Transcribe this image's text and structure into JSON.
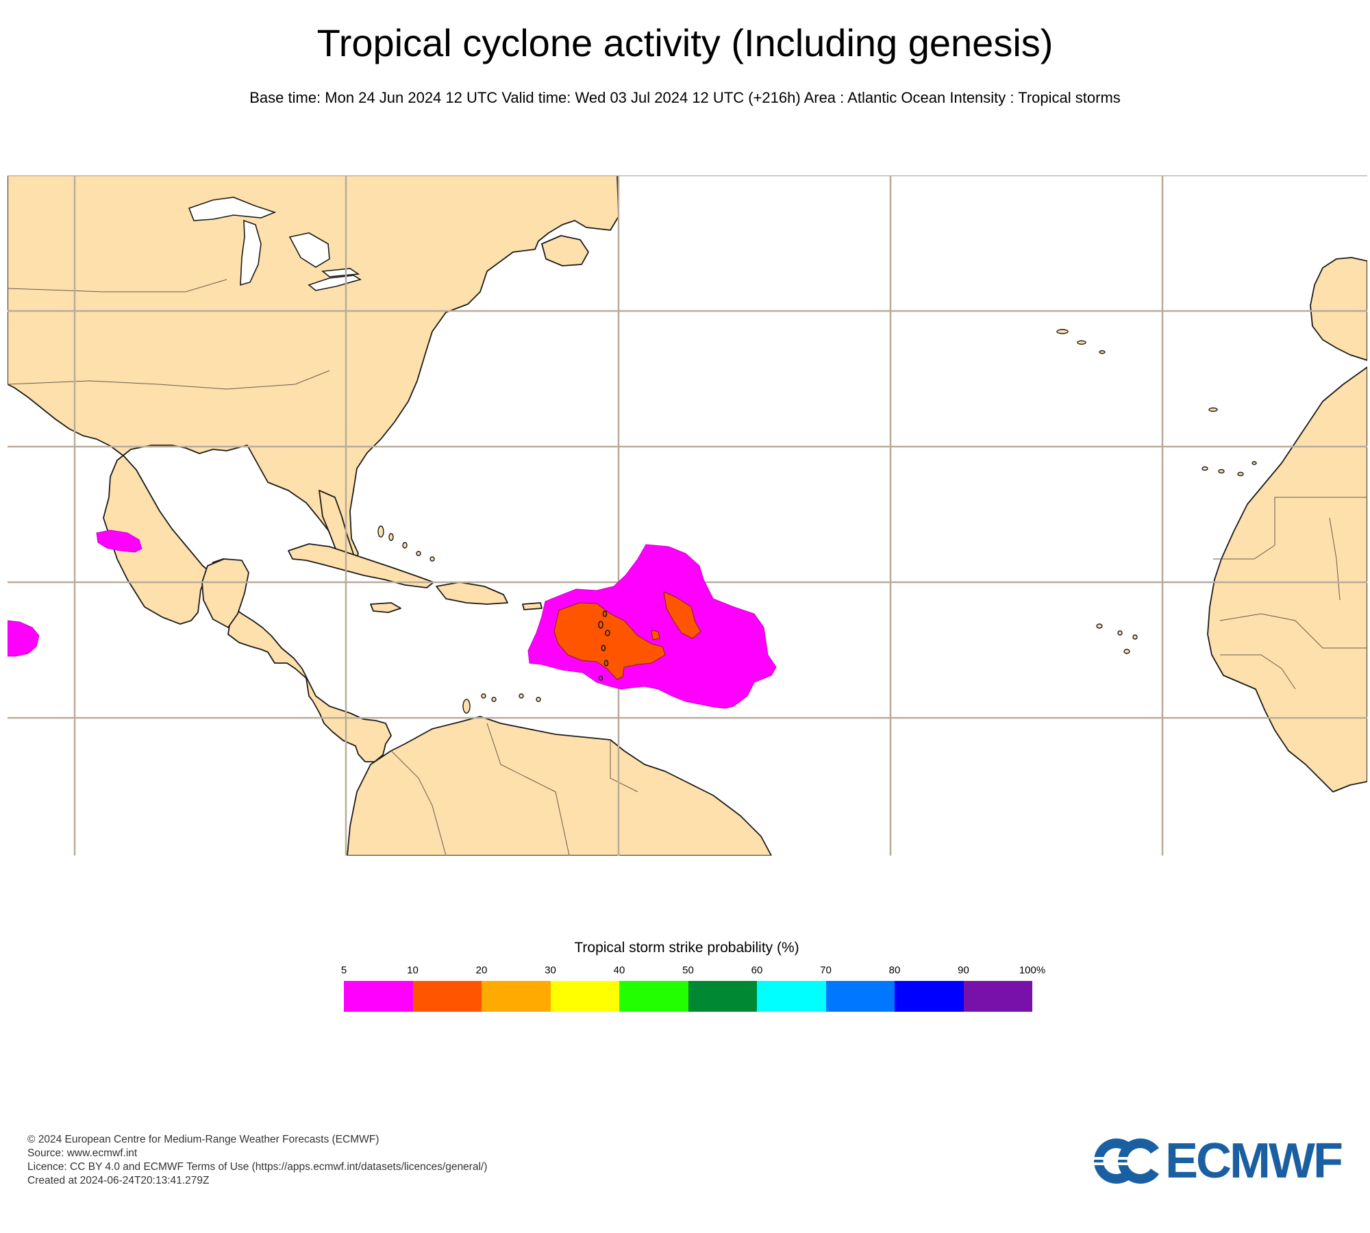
{
  "header": {
    "title": "Tropical cyclone activity (Including genesis)",
    "subtitle": "Base time: Mon 24 Jun 2024 12 UTC Valid time: Wed 03 Jul 2024 12 UTC (+216h) Area : Atlantic Ocean Intensity : Tropical storms"
  },
  "map": {
    "land_color": "#fde0ac",
    "ocean_color": "#ffffff",
    "grid_color": "#b9ab9b"
  },
  "legend": {
    "title": "Tropical storm strike probability (%)",
    "ticks": [
      "5",
      "10",
      "20",
      "30",
      "40",
      "50",
      "60",
      "70",
      "80",
      "90",
      "100%"
    ],
    "colors": [
      "#ff00ff",
      "#ff5500",
      "#ffaa00",
      "#ffff00",
      "#22ff00",
      "#008833",
      "#00ffff",
      "#0077ff",
      "#0000ff",
      "#7711aa"
    ]
  },
  "footer": {
    "copyright": "© 2024 European Centre for Medium-Range Weather Forecasts (ECMWF)",
    "source": "Source: www.ecmwf.int",
    "licence": "Licence: CC BY 4.0 and ECMWF Terms of Use (https://apps.ecmwf.int/datasets/licences/general/)",
    "created": "Created at 2024-06-24T20:13:41.279Z"
  },
  "logo": {
    "text": "ECMWF",
    "color": "#1b5fa3"
  }
}
